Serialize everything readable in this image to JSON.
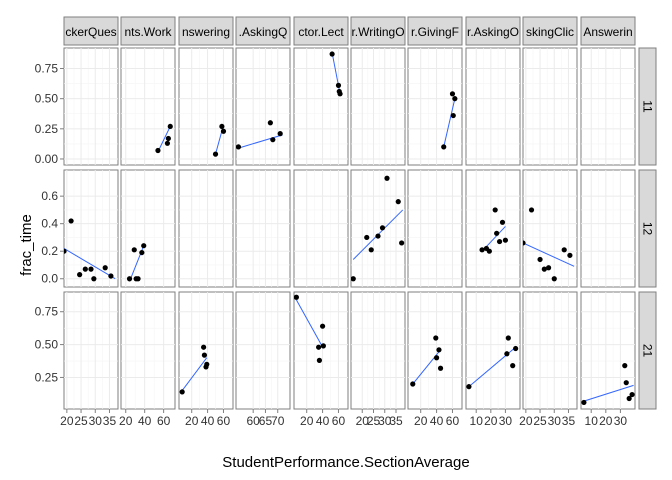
{
  "chart_data": {
    "type": "scatter",
    "facet_columns": [
      "ckerQues",
      "nts.Work",
      "nswering",
      ".AskingQ",
      "ctor.Lect",
      "r.WritingO",
      "r.GivingF",
      "r.AskingO",
      "skingClic",
      "Answerin"
    ],
    "facet_rows": [
      "11",
      "12",
      "21"
    ],
    "xlabel": "StudentPerformance.SectionAverage",
    "ylabel": "frac_time",
    "row_y_ticks": [
      {
        "values": [
          0.0,
          0.25,
          0.5,
          0.75
        ],
        "labels": [
          "0.00",
          "0.25",
          "0.50",
          "0.75"
        ],
        "ylim": [
          -0.05,
          0.92
        ]
      },
      {
        "values": [
          0.0,
          0.2,
          0.4,
          0.6
        ],
        "labels": [
          "0.0",
          "0.2",
          "0.4",
          "0.6"
        ],
        "ylim": [
          -0.06,
          0.79
        ]
      },
      {
        "values": [
          0.25,
          0.5,
          0.75
        ],
        "labels": [
          "0.25",
          "0.50",
          "0.75"
        ],
        "ylim": [
          0.01,
          0.9
        ]
      }
    ],
    "col_x_ticks": [
      {
        "values": [
          20,
          25,
          30,
          35
        ],
        "labels": [
          "20",
          "25",
          "30",
          "35"
        ],
        "xlim": [
          19,
          38
        ]
      },
      {
        "values": [
          20,
          40,
          60
        ],
        "labels": [
          "20",
          "40",
          "60"
        ],
        "xlim": [
          15,
          72
        ]
      },
      {
        "values": [
          20,
          40,
          60
        ],
        "labels": [
          "20",
          "40",
          "60"
        ],
        "xlim": [
          4,
          72
        ]
      },
      {
        "values": [
          60,
          65,
          70
        ],
        "labels": [
          "60",
          "65",
          "70"
        ],
        "xlim": [
          53,
          75
        ]
      },
      {
        "values": [
          20,
          40,
          60
        ],
        "labels": [
          "20",
          "40",
          "60"
        ],
        "xlim": [
          4,
          72
        ]
      },
      {
        "values": [
          20,
          25,
          30,
          35
        ],
        "labels": [
          "20",
          "25",
          "30",
          "35"
        ],
        "xlim": [
          15,
          39
        ]
      },
      {
        "values": [
          20,
          40,
          60
        ],
        "labels": [
          "20",
          "40",
          "60"
        ],
        "xlim": [
          4,
          72
        ]
      },
      {
        "values": [
          10,
          20,
          30
        ],
        "labels": [
          "10",
          "20",
          "30"
        ],
        "xlim": [
          3,
          40
        ]
      },
      {
        "values": [
          20,
          25,
          30,
          35
        ],
        "labels": [
          "20",
          "25",
          "30",
          "35"
        ],
        "xlim": [
          19,
          38
        ]
      },
      {
        "values": [
          10,
          20,
          30
        ],
        "labels": [
          "10",
          "20",
          "30"
        ],
        "xlim": [
          3,
          40
        ]
      }
    ],
    "panels": [
      {
        "row": 0,
        "col": 1,
        "points": [
          [
            54,
            0.07
          ],
          [
            64,
            0.13
          ],
          [
            65,
            0.17
          ],
          [
            67,
            0.27
          ]
        ],
        "fit": [
          [
            54,
            0.06
          ],
          [
            67,
            0.27
          ]
        ]
      },
      {
        "row": 0,
        "col": 2,
        "points": [
          [
            50,
            0.04
          ],
          [
            58,
            0.27
          ],
          [
            60,
            0.23
          ]
        ],
        "fit": [
          [
            50,
            0.04
          ],
          [
            60,
            0.28
          ]
        ]
      },
      {
        "row": 0,
        "col": 3,
        "points": [
          [
            54,
            0.1
          ],
          [
            67,
            0.3
          ],
          [
            68,
            0.16
          ],
          [
            71,
            0.21
          ]
        ],
        "fit": [
          [
            54,
            0.09
          ],
          [
            72,
            0.2
          ]
        ]
      },
      {
        "row": 0,
        "col": 4,
        "points": [
          [
            52,
            0.87
          ],
          [
            60,
            0.61
          ],
          [
            61,
            0.56
          ],
          [
            62,
            0.54
          ]
        ],
        "fit": [
          [
            52,
            0.88
          ],
          [
            62,
            0.54
          ]
        ]
      },
      {
        "row": 0,
        "col": 6,
        "points": [
          [
            49,
            0.1
          ],
          [
            60,
            0.54
          ],
          [
            61,
            0.36
          ],
          [
            63,
            0.5
          ]
        ],
        "fit": [
          [
            49,
            0.1
          ],
          [
            63,
            0.5
          ]
        ]
      },
      {
        "row": 1,
        "col": 0,
        "points": [
          [
            19,
            0.2
          ],
          [
            21.5,
            0.42
          ],
          [
            24.5,
            0.03
          ],
          [
            26.5,
            0.07
          ],
          [
            28.5,
            0.07
          ],
          [
            29.5,
            0.0
          ],
          [
            33.5,
            0.08
          ],
          [
            35.5,
            0.02
          ]
        ],
        "fit": [
          [
            19,
            0.22
          ],
          [
            37,
            0.0
          ]
        ]
      },
      {
        "row": 1,
        "col": 1,
        "points": [
          [
            24,
            0.0
          ],
          [
            29,
            0.21
          ],
          [
            31,
            0.0
          ],
          [
            33,
            0.0
          ],
          [
            37,
            0.19
          ],
          [
            39,
            0.24
          ]
        ],
        "fit": [
          [
            24,
            -0.02
          ],
          [
            39,
            0.24
          ]
        ]
      },
      {
        "row": 1,
        "col": 5,
        "points": [
          [
            16,
            0.0
          ],
          [
            22,
            0.3
          ],
          [
            24,
            0.21
          ],
          [
            27,
            0.31
          ],
          [
            29,
            0.37
          ],
          [
            31,
            0.73
          ],
          [
            36,
            0.56
          ],
          [
            37.5,
            0.26
          ]
        ],
        "fit": [
          [
            16,
            0.14
          ],
          [
            38,
            0.5
          ]
        ]
      },
      {
        "row": 1,
        "col": 7,
        "points": [
          [
            14,
            0.21
          ],
          [
            17,
            0.22
          ],
          [
            19,
            0.2
          ],
          [
            23,
            0.5
          ],
          [
            24,
            0.33
          ],
          [
            26,
            0.27
          ],
          [
            28,
            0.41
          ],
          [
            30,
            0.28
          ]
        ],
        "fit": [
          [
            14,
            0.2
          ],
          [
            30,
            0.38
          ]
        ]
      },
      {
        "row": 1,
        "col": 8,
        "points": [
          [
            19,
            0.26
          ],
          [
            22,
            0.5
          ],
          [
            25,
            0.14
          ],
          [
            26.5,
            0.07
          ],
          [
            28,
            0.08
          ],
          [
            30,
            0.0
          ],
          [
            33.5,
            0.21
          ],
          [
            35.5,
            0.17
          ]
        ],
        "fit": [
          [
            19,
            0.26
          ],
          [
            37,
            0.09
          ]
        ]
      },
      {
        "row": 2,
        "col": 2,
        "points": [
          [
            8,
            0.14
          ],
          [
            35,
            0.48
          ],
          [
            36,
            0.42
          ],
          [
            38,
            0.33
          ],
          [
            39,
            0.35
          ]
        ],
        "fit": [
          [
            8,
            0.15
          ],
          [
            39,
            0.4
          ]
        ]
      },
      {
        "row": 2,
        "col": 4,
        "points": [
          [
            7,
            0.86
          ],
          [
            35,
            0.48
          ],
          [
            36,
            0.38
          ],
          [
            40,
            0.64
          ],
          [
            41,
            0.49
          ]
        ],
        "fit": [
          [
            7,
            0.84
          ],
          [
            41,
            0.47
          ]
        ]
      },
      {
        "row": 2,
        "col": 6,
        "points": [
          [
            10,
            0.2
          ],
          [
            39,
            0.55
          ],
          [
            40,
            0.4
          ],
          [
            43,
            0.46
          ],
          [
            45,
            0.32
          ]
        ],
        "fit": [
          [
            10,
            0.2
          ],
          [
            45,
            0.46
          ]
        ]
      },
      {
        "row": 2,
        "col": 7,
        "points": [
          [
            5,
            0.18
          ],
          [
            31,
            0.43
          ],
          [
            32,
            0.55
          ],
          [
            35,
            0.34
          ],
          [
            37,
            0.47
          ]
        ],
        "fit": [
          [
            5,
            0.18
          ],
          [
            37,
            0.48
          ]
        ]
      },
      {
        "row": 2,
        "col": 9,
        "points": [
          [
            5,
            0.06
          ],
          [
            33,
            0.34
          ],
          [
            34,
            0.21
          ],
          [
            36,
            0.09
          ],
          [
            38,
            0.12
          ]
        ],
        "fit": [
          [
            5,
            0.07
          ],
          [
            39,
            0.19
          ]
        ]
      }
    ]
  }
}
